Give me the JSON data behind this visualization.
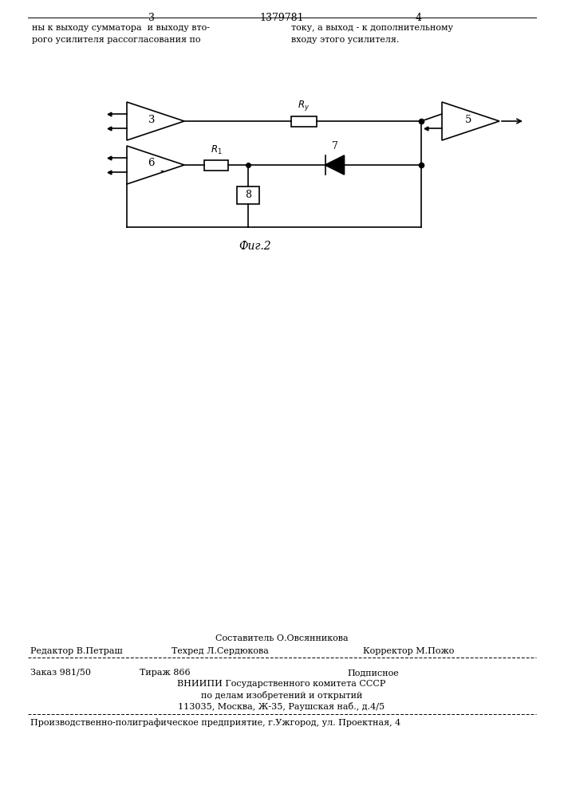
{
  "page_width": 7.07,
  "page_height": 10.0,
  "bg_color": "#ffffff",
  "header_number": "1379781",
  "page_left": "3",
  "page_right": "4",
  "text_left": "ны к выходу сумматора  и выходу вто-\nрого усилителя рассогласования по",
  "text_right": "току, а выход - к дополнительному\nвходу этого усилителя.",
  "fig_caption": "Фиг.2",
  "footer_line1": "Составитель О.Овсянникова",
  "footer_line2_left": "Редактор В.Петраш",
  "footer_line2_mid": "Техред Л.Сердюкова",
  "footer_line2_right": "Корректор М.Пожо",
  "footer_line3a": "Заказ 981/50",
  "footer_line3b": "Тираж 866",
  "footer_line3c": "Подписное",
  "footer_line4": "ВНИИПИ Государственного комитета СССР",
  "footer_line5": "по делам изобретений и открытий",
  "footer_line6": "113035, Москва, Ж-35, Раушская наб., д.4/5",
  "footer_line7": "Производственно-полиграфическое предприятие, г.Ужгород, ул. Проектная, 4",
  "lw": 1.2,
  "lw_thin": 0.7
}
